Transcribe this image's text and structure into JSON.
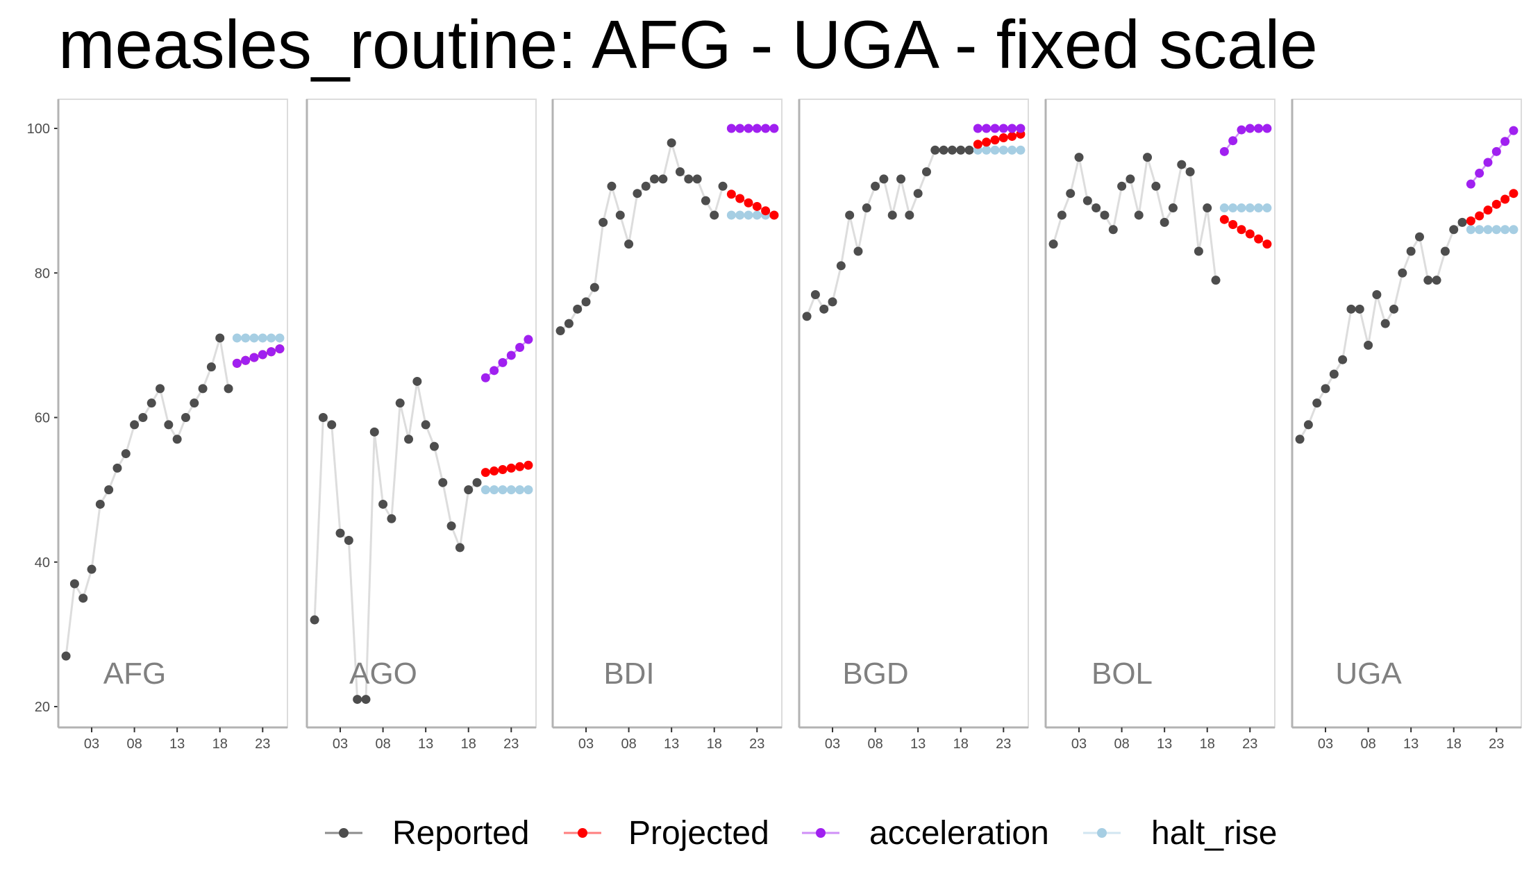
{
  "chart_data": {
    "type": "line",
    "title": "measles_routine: AFG - UGA - fixed scale",
    "xlabel": "",
    "ylabel": "",
    "ylim": [
      20,
      100
    ],
    "y_ticks": [
      20,
      40,
      60,
      80,
      100
    ],
    "y_tick_labels": [
      "20",
      "40",
      "60",
      "80",
      "100"
    ],
    "x_ticks": [
      2003,
      2008,
      2013,
      2018,
      2023
    ],
    "x_tick_labels": [
      "03",
      "08",
      "13",
      "18",
      "23"
    ],
    "xlim": [
      1999.1,
      2025.9
    ],
    "legend_position": "bottom",
    "series_styles": [
      {
        "name": "Reported",
        "color": "#4d4d4d",
        "line_color": "#8c8c8c"
      },
      {
        "name": "Projected",
        "color": "#ff0000",
        "line_color": "#ff7f7f"
      },
      {
        "name": "acceleration",
        "color": "#a020f0",
        "line_color": "#cf8ff7"
      },
      {
        "name": "halt_rise",
        "color": "#a6cee3",
        "line_color": "#d2e6f1"
      }
    ],
    "panels": [
      {
        "label": "AFG",
        "reported": {
          "x": [
            2000,
            2001,
            2002,
            2003,
            2004,
            2005,
            2006,
            2007,
            2008,
            2009,
            2010,
            2011,
            2012,
            2013,
            2014,
            2015,
            2016,
            2017,
            2018,
            2019
          ],
          "y": [
            27,
            37,
            35,
            39,
            48,
            50,
            53,
            55,
            59,
            60,
            62,
            64,
            59,
            57,
            60,
            62,
            64,
            67,
            71,
            64
          ]
        },
        "projected": {
          "x": [
            2020,
            2021,
            2022,
            2023,
            2024,
            2025
          ],
          "y": [
            67.5,
            67.9,
            68.3,
            68.7,
            69.1,
            69.5
          ]
        },
        "acceleration": {
          "x": [
            2020,
            2021,
            2022,
            2023,
            2024,
            2025
          ],
          "y": [
            67.5,
            67.9,
            68.3,
            68.7,
            69.1,
            69.5
          ]
        },
        "halt_rise": {
          "x": [
            2020,
            2021,
            2022,
            2023,
            2024,
            2025
          ],
          "y": [
            71,
            71,
            71,
            71,
            71,
            71
          ]
        }
      },
      {
        "label": "AGO",
        "reported": {
          "x": [
            2000,
            2001,
            2002,
            2003,
            2004,
            2005,
            2006,
            2007,
            2008,
            2009,
            2010,
            2011,
            2012,
            2013,
            2014,
            2015,
            2016,
            2017,
            2018,
            2019
          ],
          "y": [
            32,
            60,
            59,
            44,
            43,
            21,
            21,
            58,
            48,
            46,
            62,
            57,
            65,
            59,
            56,
            51,
            45,
            42,
            50,
            51
          ]
        },
        "projected": {
          "x": [
            2020,
            2021,
            2022,
            2023,
            2024,
            2025
          ],
          "y": [
            52.4,
            52.6,
            52.8,
            53.0,
            53.2,
            53.4
          ]
        },
        "acceleration": {
          "x": [
            2020,
            2021,
            2022,
            2023,
            2024,
            2025
          ],
          "y": [
            65.5,
            66.5,
            67.6,
            68.6,
            69.7,
            70.8
          ]
        },
        "halt_rise": {
          "x": [
            2020,
            2021,
            2022,
            2023,
            2024,
            2025
          ],
          "y": [
            50,
            50,
            50,
            50,
            50,
            50
          ]
        }
      },
      {
        "label": "BDI",
        "reported": {
          "x": [
            2000,
            2001,
            2002,
            2003,
            2004,
            2005,
            2006,
            2007,
            2008,
            2009,
            2010,
            2011,
            2012,
            2013,
            2014,
            2015,
            2016,
            2017,
            2018,
            2019
          ],
          "y": [
            72,
            73,
            75,
            76,
            78,
            87,
            92,
            88,
            84,
            91,
            92,
            93,
            93,
            98,
            94,
            93,
            93,
            90,
            88,
            92
          ]
        },
        "projected": {
          "x": [
            2020,
            2021,
            2022,
            2023,
            2024,
            2025
          ],
          "y": [
            90.9,
            90.3,
            89.7,
            89.2,
            88.6,
            88.0
          ]
        },
        "acceleration": {
          "x": [
            2020,
            2021,
            2022,
            2023,
            2024,
            2025
          ],
          "y": [
            100,
            100,
            100,
            100,
            100,
            100
          ]
        },
        "halt_rise": {
          "x": [
            2020,
            2021,
            2022,
            2023,
            2024,
            2025
          ],
          "y": [
            88,
            88,
            88,
            88,
            88,
            88
          ]
        }
      },
      {
        "label": "BGD",
        "reported": {
          "x": [
            2000,
            2001,
            2002,
            2003,
            2004,
            2005,
            2006,
            2007,
            2008,
            2009,
            2010,
            2011,
            2012,
            2013,
            2014,
            2015,
            2016,
            2017,
            2018,
            2019
          ],
          "y": [
            74,
            77,
            75,
            76,
            81,
            88,
            83,
            89,
            92,
            93,
            88,
            93,
            88,
            91,
            94,
            97,
            97,
            97,
            97,
            97
          ]
        },
        "projected": {
          "x": [
            2020,
            2021,
            2022,
            2023,
            2024,
            2025
          ],
          "y": [
            97.8,
            98.1,
            98.4,
            98.7,
            98.9,
            99.2
          ]
        },
        "acceleration": {
          "x": [
            2020,
            2021,
            2022,
            2023,
            2024,
            2025
          ],
          "y": [
            100,
            100,
            100,
            100,
            100,
            100
          ]
        },
        "halt_rise": {
          "x": [
            2020,
            2021,
            2022,
            2023,
            2024,
            2025
          ],
          "y": [
            97,
            97,
            97,
            97,
            97,
            97
          ]
        }
      },
      {
        "label": "BOL",
        "reported": {
          "x": [
            2000,
            2001,
            2002,
            2003,
            2004,
            2005,
            2006,
            2007,
            2008,
            2009,
            2010,
            2011,
            2012,
            2013,
            2014,
            2015,
            2016,
            2017,
            2018,
            2019
          ],
          "y": [
            84,
            88,
            91,
            96,
            90,
            89,
            88,
            86,
            92,
            93,
            88,
            96,
            92,
            87,
            89,
            95,
            94,
            83,
            89,
            79
          ]
        },
        "projected": {
          "x": [
            2020,
            2021,
            2022,
            2023,
            2024,
            2025
          ],
          "y": [
            87.4,
            86.7,
            86.0,
            85.4,
            84.7,
            84.0
          ]
        },
        "acceleration": {
          "x": [
            2020,
            2021,
            2022,
            2023,
            2024,
            2025
          ],
          "y": [
            96.8,
            98.3,
            99.8,
            100,
            100,
            100
          ]
        },
        "halt_rise": {
          "x": [
            2020,
            2021,
            2022,
            2023,
            2024,
            2025
          ],
          "y": [
            89,
            89,
            89,
            89,
            89,
            89
          ]
        }
      },
      {
        "label": "UGA",
        "reported": {
          "x": [
            2000,
            2001,
            2002,
            2003,
            2004,
            2005,
            2006,
            2007,
            2008,
            2009,
            2010,
            2011,
            2012,
            2013,
            2014,
            2015,
            2016,
            2017,
            2018,
            2019
          ],
          "y": [
            57,
            59,
            62,
            64,
            66,
            68,
            75,
            75,
            70,
            77,
            73,
            75,
            80,
            83,
            85,
            79,
            79,
            83,
            86,
            87
          ]
        },
        "projected": {
          "x": [
            2020,
            2021,
            2022,
            2023,
            2024,
            2025
          ],
          "y": [
            87.2,
            87.9,
            88.7,
            89.5,
            90.2,
            91.0
          ]
        },
        "acceleration": {
          "x": [
            2020,
            2021,
            2022,
            2023,
            2024,
            2025
          ],
          "y": [
            92.3,
            93.8,
            95.3,
            96.8,
            98.2,
            99.7
          ]
        },
        "halt_rise": {
          "x": [
            2020,
            2021,
            2022,
            2023,
            2024,
            2025
          ],
          "y": [
            86,
            86,
            86,
            86,
            86,
            86
          ]
        }
      }
    ]
  }
}
